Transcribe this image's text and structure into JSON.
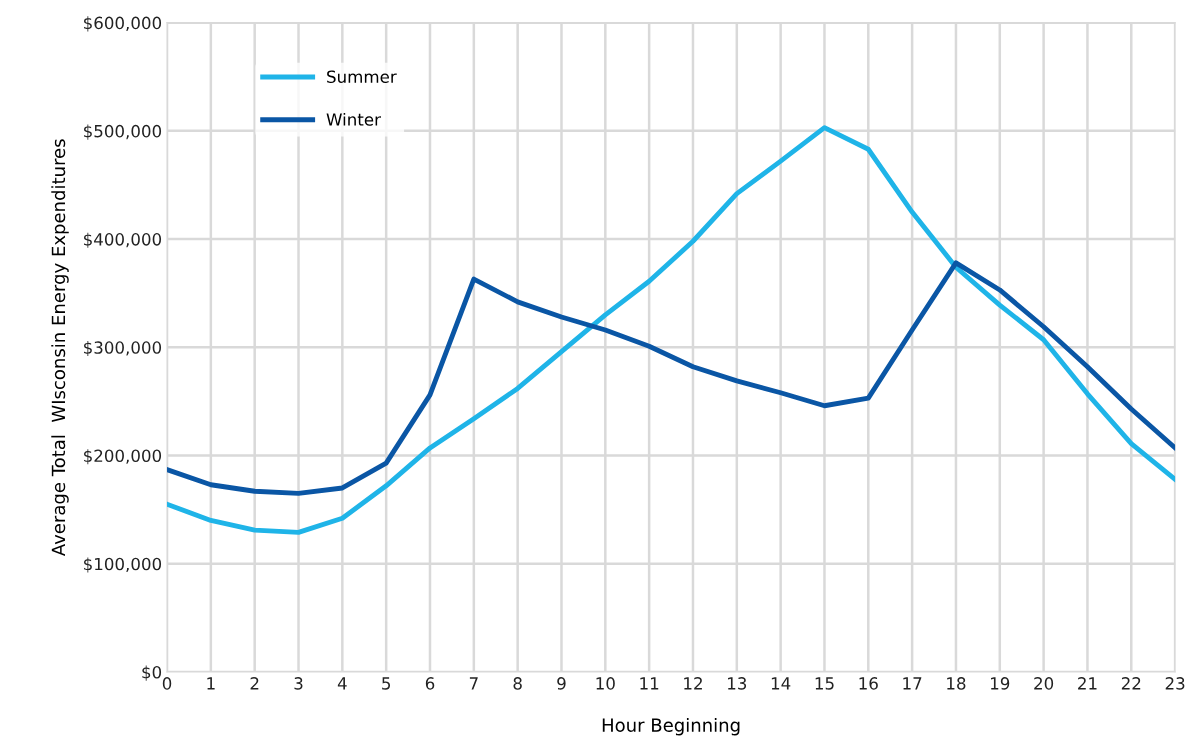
{
  "chart_data": {
    "type": "line",
    "xlabel": "Hour Beginning",
    "ylabel": "Average Total  WIsconsin Energy Expenditures",
    "x": [
      0,
      1,
      2,
      3,
      4,
      5,
      6,
      7,
      8,
      9,
      10,
      11,
      12,
      13,
      14,
      15,
      16,
      17,
      18,
      19,
      20,
      21,
      22,
      23
    ],
    "series": [
      {
        "name": "Summer",
        "color": "#1fb4e8",
        "values": [
          155000,
          140000,
          131000,
          129000,
          142000,
          172000,
          207000,
          234000,
          262000,
          296000,
          330000,
          361000,
          398000,
          442000,
          472000,
          503000,
          483000,
          425000,
          374000,
          339000,
          307000,
          257000,
          211000,
          178000
        ]
      },
      {
        "name": "Winter",
        "color": "#0a56a5",
        "values": [
          187000,
          173000,
          167000,
          165000,
          170000,
          193000,
          256000,
          363000,
          342000,
          328000,
          316000,
          301000,
          282000,
          269000,
          258000,
          246000,
          253000,
          316000,
          378000,
          353000,
          319000,
          282000,
          243000,
          207000
        ]
      }
    ],
    "xlim": [
      0,
      23
    ],
    "xticks": [
      0,
      1,
      2,
      3,
      4,
      5,
      6,
      7,
      8,
      9,
      10,
      11,
      12,
      13,
      14,
      15,
      16,
      17,
      18,
      19,
      20,
      21,
      22,
      23
    ],
    "ylim": [
      0,
      600000
    ],
    "yticks": [
      {
        "value": 0,
        "label": "$0"
      },
      {
        "value": 100000,
        "label": "$100,000"
      },
      {
        "value": 200000,
        "label": "$200,000"
      },
      {
        "value": 300000,
        "label": "$300,000"
      },
      {
        "value": 400000,
        "label": "$400,000"
      },
      {
        "value": 500000,
        "label": "$500,000"
      },
      {
        "value": 600000,
        "label": "$600,000"
      }
    ],
    "grid": true,
    "legend": "top left",
    "marker": "none",
    "line_style": "solid"
  }
}
